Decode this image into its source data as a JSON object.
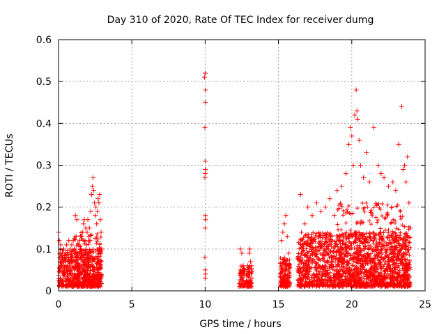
{
  "chart_data": {
    "type": "scatter",
    "title": "Day 310 of 2020, Rate Of TEC Index for receiver dumg",
    "xlabel": "GPS time / hours",
    "ylabel": "ROTI / TECUs",
    "xlim": [
      0,
      25
    ],
    "ylim": [
      0,
      0.6
    ],
    "x_ticks": [
      "0",
      "5",
      "10",
      "15",
      "20",
      "25"
    ],
    "y_ticks": [
      "0",
      "0.1",
      "0.2",
      "0.3",
      "0.4",
      "0.5",
      "0.6"
    ],
    "grid": true,
    "legend": "none",
    "marker": "plus",
    "color": "#ff0000",
    "series": [
      {
        "points": [
          [
            0.0,
            0.14
          ],
          [
            0.05,
            0.12
          ],
          [
            0.1,
            0.09
          ],
          [
            0.15,
            0.11
          ],
          [
            0.2,
            0.07
          ],
          [
            0.25,
            0.08
          ],
          [
            0.3,
            0.06
          ],
          [
            0.35,
            0.1
          ],
          [
            0.4,
            0.05
          ],
          [
            0.45,
            0.09
          ],
          [
            0.5,
            0.07
          ],
          [
            0.55,
            0.11
          ],
          [
            0.6,
            0.05
          ],
          [
            0.65,
            0.08
          ],
          [
            0.7,
            0.12
          ],
          [
            0.75,
            0.06
          ],
          [
            0.8,
            0.1
          ],
          [
            0.85,
            0.09
          ],
          [
            0.9,
            0.11
          ],
          [
            0.95,
            0.07
          ],
          [
            1.0,
            0.12
          ],
          [
            1.05,
            0.08
          ],
          [
            1.1,
            0.1
          ],
          [
            1.15,
            0.18
          ],
          [
            1.2,
            0.13
          ],
          [
            1.25,
            0.17
          ],
          [
            1.3,
            0.09
          ],
          [
            1.35,
            0.11
          ],
          [
            1.4,
            0.08
          ],
          [
            1.45,
            0.12
          ],
          [
            1.5,
            0.1
          ],
          [
            1.55,
            0.13
          ],
          [
            1.6,
            0.09
          ],
          [
            1.65,
            0.14
          ],
          [
            1.7,
            0.16
          ],
          [
            1.75,
            0.17
          ],
          [
            1.8,
            0.12
          ],
          [
            1.85,
            0.15
          ],
          [
            1.9,
            0.11
          ],
          [
            1.95,
            0.14
          ],
          [
            2.0,
            0.17
          ],
          [
            2.05,
            0.13
          ],
          [
            2.1,
            0.15
          ],
          [
            2.15,
            0.12
          ],
          [
            2.2,
            0.19
          ],
          [
            2.25,
            0.23
          ],
          [
            2.3,
            0.25
          ],
          [
            2.35,
            0.27
          ],
          [
            2.4,
            0.24
          ],
          [
            2.45,
            0.21
          ],
          [
            2.5,
            0.18
          ],
          [
            2.55,
            0.2
          ],
          [
            2.6,
            0.16
          ],
          [
            2.65,
            0.19
          ],
          [
            2.7,
            0.22
          ],
          [
            2.75,
            0.21
          ],
          [
            2.8,
            0.23
          ],
          [
            2.85,
            0.17
          ],
          [
            2.9,
            0.14
          ],
          [
            2.95,
            0.1
          ],
          [
            9.95,
            0.51
          ],
          [
            10.0,
            0.52
          ],
          [
            10.02,
            0.48
          ],
          [
            10.0,
            0.45
          ],
          [
            9.98,
            0.39
          ],
          [
            10.0,
            0.31
          ],
          [
            10.02,
            0.29
          ],
          [
            10.0,
            0.28
          ],
          [
            9.98,
            0.27
          ],
          [
            10.0,
            0.18
          ],
          [
            10.02,
            0.17
          ],
          [
            10.0,
            0.15
          ],
          [
            9.98,
            0.08
          ],
          [
            10.0,
            0.05
          ],
          [
            10.02,
            0.04
          ],
          [
            10.0,
            0.03
          ],
          [
            12.4,
            0.1
          ],
          [
            12.5,
            0.09
          ],
          [
            12.6,
            0.06
          ],
          [
            12.7,
            0.05
          ],
          [
            12.8,
            0.04
          ],
          [
            12.9,
            0.06
          ],
          [
            13.0,
            0.09
          ],
          [
            13.05,
            0.1
          ],
          [
            13.1,
            0.07
          ],
          [
            13.15,
            0.06
          ],
          [
            15.2,
            0.12
          ],
          [
            15.3,
            0.14
          ],
          [
            15.4,
            0.16
          ],
          [
            15.5,
            0.18
          ],
          [
            15.6,
            0.13
          ],
          [
            15.7,
            0.09
          ],
          [
            16.5,
            0.23
          ],
          [
            16.8,
            0.16
          ],
          [
            17.0,
            0.2
          ],
          [
            17.3,
            0.18
          ],
          [
            17.6,
            0.21
          ],
          [
            17.9,
            0.19
          ],
          [
            18.2,
            0.2
          ],
          [
            18.5,
            0.22
          ],
          [
            18.8,
            0.18
          ],
          [
            19.0,
            0.24
          ],
          [
            19.3,
            0.25
          ],
          [
            19.6,
            0.28
          ],
          [
            19.8,
            0.35
          ],
          [
            19.9,
            0.39
          ],
          [
            20.0,
            0.37
          ],
          [
            20.1,
            0.3
          ],
          [
            20.2,
            0.42
          ],
          [
            20.3,
            0.48
          ],
          [
            20.35,
            0.43
          ],
          [
            20.4,
            0.41
          ],
          [
            20.5,
            0.36
          ],
          [
            20.6,
            0.3
          ],
          [
            20.8,
            0.27
          ],
          [
            21.0,
            0.33
          ],
          [
            21.2,
            0.26
          ],
          [
            21.5,
            0.39
          ],
          [
            21.8,
            0.3
          ],
          [
            22.0,
            0.28
          ],
          [
            22.2,
            0.27
          ],
          [
            22.5,
            0.25
          ],
          [
            22.8,
            0.26
          ],
          [
            23.0,
            0.24
          ],
          [
            23.2,
            0.35
          ],
          [
            23.4,
            0.44
          ],
          [
            23.5,
            0.29
          ],
          [
            23.6,
            0.3
          ],
          [
            23.7,
            0.26
          ],
          [
            23.8,
            0.32
          ],
          [
            23.9,
            0.21
          ],
          [
            24.0,
            0.15
          ]
        ]
      }
    ]
  }
}
